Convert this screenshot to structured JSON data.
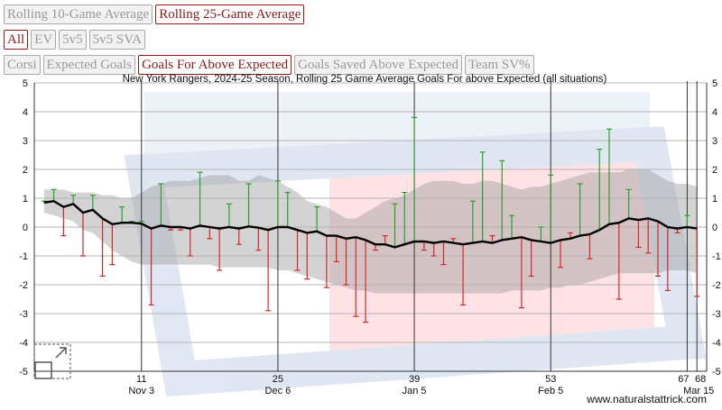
{
  "controls": {
    "window_buttons": [
      {
        "label": "Rolling 10-Game Average",
        "active": false
      },
      {
        "label": "Rolling 25-Game Average",
        "active": true
      }
    ],
    "situation_buttons": [
      {
        "label": "All",
        "active": true
      },
      {
        "label": "EV",
        "active": false
      },
      {
        "label": "5v5",
        "active": false
      },
      {
        "label": "5v5 SVA",
        "active": false
      }
    ],
    "metric_buttons": [
      {
        "label": "Corsi",
        "active": false
      },
      {
        "label": "Expected Goals",
        "active": false
      },
      {
        "label": "Goals For Above Expected",
        "active": true
      },
      {
        "label": "Goals Saved Above Expected",
        "active": false
      },
      {
        "label": "Team SV%",
        "active": false
      }
    ]
  },
  "colors": {
    "active_button": "#8b1a1a",
    "positive_bar": "#2ca02c",
    "negative_bar": "#d62728",
    "rolling_line": "#000000",
    "band": "#9e9e9e"
  },
  "chart_data": {
    "type": "line",
    "title": "New York Rangers, 2024-25 Season, Rolling 25 Game Average Goals For above Expected (all situations)",
    "watermark": "www.naturalstattrick.com",
    "xlim": [
      0,
      69
    ],
    "ylim": [
      -5,
      5
    ],
    "y_ticks": [
      5,
      4,
      3,
      2,
      1,
      0,
      -1,
      -2,
      -3,
      -4,
      -5
    ],
    "x_markers": [
      {
        "game": 11,
        "date": "Nov 3"
      },
      {
        "game": 25,
        "date": "Dec 6"
      },
      {
        "game": 39,
        "date": "Jan 5"
      },
      {
        "game": 53,
        "date": "Feb 5"
      },
      {
        "game": 67,
        "date": ""
      },
      {
        "game": 68,
        "date": "Mar 15"
      }
    ],
    "games": [
      1,
      2,
      3,
      4,
      5,
      6,
      7,
      8,
      9,
      10,
      11,
      12,
      13,
      14,
      15,
      16,
      17,
      18,
      19,
      20,
      21,
      22,
      23,
      24,
      25,
      26,
      27,
      28,
      29,
      30,
      31,
      32,
      33,
      34,
      35,
      36,
      37,
      38,
      39,
      40,
      41,
      42,
      43,
      44,
      45,
      46,
      47,
      48,
      49,
      50,
      51,
      52,
      53,
      54,
      55,
      56,
      57,
      58,
      59,
      60,
      61,
      62,
      63,
      64,
      65,
      66,
      67,
      68
    ],
    "game_values": [
      0.9,
      1.3,
      -0.3,
      1.1,
      -1.0,
      1.1,
      -1.7,
      -1.3,
      0.7,
      0.2,
      0.2,
      -2.7,
      1.5,
      -0.1,
      -0.1,
      -1.0,
      1.9,
      -0.4,
      -1.5,
      0.8,
      -0.6,
      1.5,
      -0.8,
      -2.9,
      1.6,
      1.2,
      -1.5,
      -1.8,
      0.7,
      -2.1,
      -1.2,
      -2.0,
      -3.1,
      -3.3,
      -0.8,
      -0.3,
      0.8,
      1.2,
      3.8,
      -0.8,
      -1.0,
      -1.3,
      -0.4,
      -2.7,
      0.9,
      2.6,
      -0.3,
      2.3,
      0.4,
      -2.8,
      -1.7,
      0.0,
      1.8,
      -1.4,
      -0.2,
      1.5,
      -1.1,
      2.7,
      3.4,
      -2.5,
      1.3,
      -0.7,
      -0.9,
      -1.7,
      -2.2,
      -0.2,
      0.4,
      -2.4
    ],
    "rolling_values": [
      0.85,
      0.9,
      0.7,
      0.8,
      0.5,
      0.6,
      0.3,
      0.1,
      0.15,
      0.15,
      0.12,
      -0.05,
      0.05,
      0.0,
      0.0,
      -0.05,
      0.05,
      0.0,
      -0.05,
      0.0,
      -0.05,
      0.02,
      -0.02,
      -0.1,
      0.0,
      0.0,
      -0.1,
      -0.2,
      -0.15,
      -0.3,
      -0.3,
      -0.4,
      -0.35,
      -0.45,
      -0.6,
      -0.6,
      -0.7,
      -0.6,
      -0.5,
      -0.5,
      -0.55,
      -0.5,
      -0.55,
      -0.6,
      -0.55,
      -0.5,
      -0.55,
      -0.45,
      -0.4,
      -0.35,
      -0.45,
      -0.5,
      -0.55,
      -0.45,
      -0.4,
      -0.3,
      -0.25,
      -0.1,
      0.1,
      0.15,
      0.3,
      0.25,
      0.3,
      0.2,
      0.0,
      -0.05,
      0.0,
      -0.05
    ],
    "band_upper": [
      1.3,
      1.3,
      1.3,
      1.2,
      1.2,
      1.2,
      1.1,
      1.1,
      1.0,
      1.0,
      1.2,
      1.4,
      1.5,
      1.6,
      1.6,
      1.6,
      1.7,
      1.8,
      1.8,
      1.8,
      1.6,
      1.6,
      1.8,
      1.7,
      1.6,
      1.4,
      1.2,
      0.9,
      0.8,
      0.7,
      0.5,
      0.3,
      0.3,
      0.5,
      0.7,
      0.9,
      1.0,
      1.1,
      1.3,
      1.5,
      1.6,
      1.6,
      1.6,
      1.5,
      1.5,
      1.6,
      1.6,
      1.5,
      1.4,
      1.3,
      1.4,
      1.4,
      1.5,
      1.6,
      1.7,
      1.8,
      1.9,
      1.9,
      1.9,
      1.9,
      2.0,
      2.0,
      2.0,
      1.8,
      1.6,
      1.5,
      1.5,
      1.4
    ],
    "band_lower": [
      0.5,
      0.4,
      0.3,
      0.2,
      -0.1,
      -0.2,
      -0.5,
      -0.8,
      -1.0,
      -1.2,
      -1.3,
      -1.3,
      -1.3,
      -1.3,
      -1.3,
      -1.3,
      -1.3,
      -1.3,
      -1.4,
      -1.4,
      -1.4,
      -1.4,
      -1.4,
      -1.4,
      -1.5,
      -1.5,
      -1.6,
      -1.7,
      -1.8,
      -1.9,
      -2.0,
      -2.1,
      -2.2,
      -2.2,
      -2.3,
      -2.3,
      -2.3,
      -2.3,
      -2.3,
      -2.3,
      -2.3,
      -2.3,
      -2.3,
      -2.3,
      -2.3,
      -2.3,
      -2.3,
      -2.3,
      -2.2,
      -2.2,
      -2.2,
      -2.2,
      -2.1,
      -2.1,
      -2.0,
      -2.0,
      -1.9,
      -1.8,
      -1.7,
      -1.6,
      -1.6,
      -1.6,
      -1.6,
      -1.6,
      -1.5,
      -1.5,
      -1.5,
      -1.6
    ]
  }
}
